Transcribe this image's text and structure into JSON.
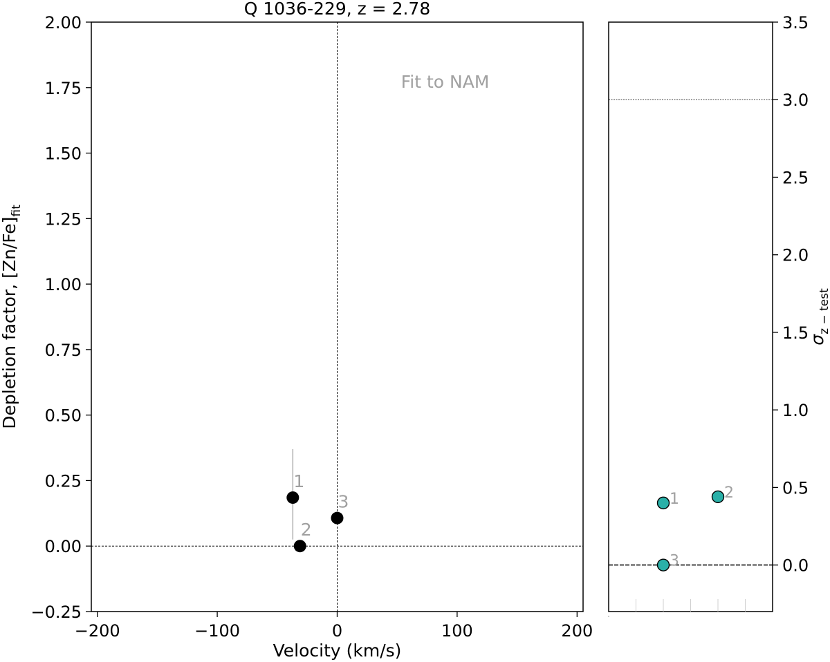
{
  "chart_data": [
    {
      "type": "scatter",
      "title": "Q 1036-229, z = 2.78",
      "xlabel": "Velocity (km/s)",
      "ylabel": "Depletion factor, [Zn/Fe]",
      "ylabel_subscript": "fit",
      "xlim": [
        -205,
        205
      ],
      "ylim": [
        -0.25,
        2.0
      ],
      "xticks": [
        -200,
        -100,
        0,
        100,
        200
      ],
      "xtick_labels": [
        "−200",
        "−100",
        "0",
        "100",
        "200"
      ],
      "yticks": [
        -0.25,
        0.0,
        0.25,
        0.5,
        0.75,
        1.0,
        1.25,
        1.5,
        1.75,
        2.0
      ],
      "ytick_labels": [
        "−0.25",
        "0.00",
        "0.25",
        "0.50",
        "0.75",
        "1.00",
        "1.25",
        "1.50",
        "1.75",
        "2.00"
      ],
      "annotation": "Fit to NAM",
      "reference_lines": {
        "hline_y": 0.0,
        "vline_x": 0.0
      },
      "point_color": "#000000",
      "points": [
        {
          "label": "1",
          "x": -37,
          "y": 0.185,
          "err_low": 0.16,
          "err_high": 0.185
        },
        {
          "label": "2",
          "x": -31,
          "y": 0.0,
          "err_low": 0.0,
          "err_high": 0.0
        },
        {
          "label": "3",
          "x": 0,
          "y": 0.107,
          "err_low": 0.0,
          "err_high": 0.0
        }
      ]
    },
    {
      "type": "scatter",
      "ylabel": "σ",
      "ylabel_subscript": "z − test",
      "ylim": [
        -0.3,
        3.5
      ],
      "yticks": [
        0.0,
        0.5,
        1.0,
        1.5,
        2.0,
        2.5,
        3.0,
        3.5
      ],
      "ytick_labels": [
        "0.0",
        "0.5",
        "1.0",
        "1.5",
        "2.0",
        "2.5",
        "3.0",
        "3.5"
      ],
      "x_slots": 6,
      "reference_lines": {
        "dotted_y": 3.0,
        "dashed_y": 0.0
      },
      "point_color": "#2ab0a8",
      "points": [
        {
          "label": "1",
          "slot": 2,
          "y": 0.4
        },
        {
          "label": "2",
          "slot": 4,
          "y": 0.44
        },
        {
          "label": "3",
          "slot": 2,
          "y": 0.0
        }
      ]
    }
  ]
}
